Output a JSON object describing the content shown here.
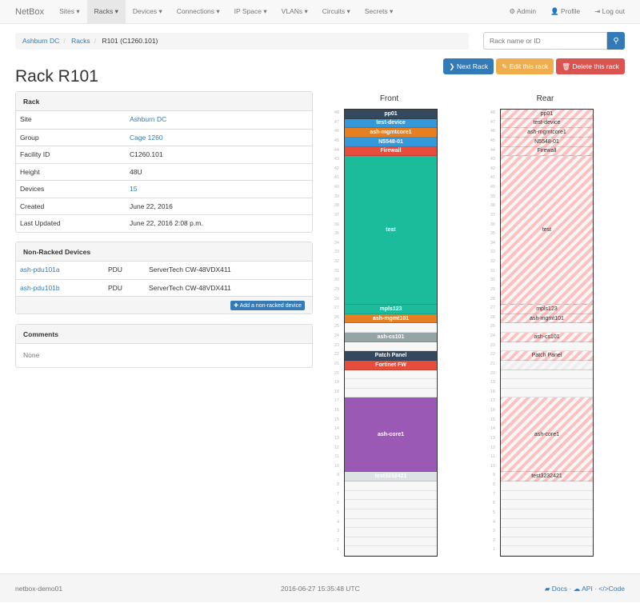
{
  "nav": {
    "brand": "NetBox",
    "items": [
      "Sites",
      "Racks",
      "Devices",
      "Connections",
      "IP Space",
      "VLANs",
      "Circuits",
      "Secrets"
    ],
    "active": "Racks",
    "right": [
      {
        "icon": "gear-icon",
        "label": "Admin"
      },
      {
        "icon": "user-icon",
        "label": "Profile"
      },
      {
        "icon": "log-out-icon",
        "label": "Log out"
      }
    ]
  },
  "breadcrumb": [
    "Ashburn DC",
    "Racks",
    "R101 (C1260.101)"
  ],
  "search": {
    "placeholder": "Rack name or ID"
  },
  "buttons": {
    "next": "Next Rack",
    "edit": "Edit this rack",
    "delete": "Delete this rack"
  },
  "title": "Rack R101",
  "rack_panel": {
    "heading": "Rack",
    "rows": [
      {
        "k": "Site",
        "v": "Ashburn DC",
        "link": true
      },
      {
        "k": "Group",
        "v": "Cage 1260",
        "link": true
      },
      {
        "k": "Facility ID",
        "v": "C1260.101"
      },
      {
        "k": "Height",
        "v": "48U"
      },
      {
        "k": "Devices",
        "v": "15",
        "link": true
      },
      {
        "k": "Created",
        "v": "June 22, 2016"
      },
      {
        "k": "Last Updated",
        "v": "June 22, 2016 2:08 p.m."
      }
    ]
  },
  "nonracked": {
    "heading": "Non-Racked Devices",
    "rows": [
      [
        "ash-pdu101a",
        "PDU",
        "ServerTech CW-48VDX411"
      ],
      [
        "ash-pdu101b",
        "PDU",
        "ServerTech CW-48VDX411"
      ]
    ],
    "add_label": "Add a non-racked device"
  },
  "comments": {
    "heading": "Comments",
    "body": "None"
  },
  "rack": {
    "height": 48,
    "front_label": "Front",
    "rear_label": "Rear",
    "devices": [
      {
        "name": "pp01",
        "u": 48,
        "h": 1,
        "color": "#34495e"
      },
      {
        "name": "test-device",
        "u": 47,
        "h": 1,
        "color": "#3498db"
      },
      {
        "name": "ash-mgmtcore1",
        "u": 46,
        "h": 1,
        "color": "#e67e22"
      },
      {
        "name": "N5548-01",
        "u": 45,
        "h": 1,
        "color": "#3498db"
      },
      {
        "name": "Firewall",
        "u": 44,
        "h": 1,
        "color": "#e74c3c"
      },
      {
        "name": "test",
        "u": 28,
        "h": 16,
        "color": "#1abc9c"
      },
      {
        "name": "mpls123",
        "u": 27,
        "h": 1,
        "color": "#1abc9c"
      },
      {
        "name": "ash-mgmt101",
        "u": 26,
        "h": 1,
        "color": "#e67e22"
      },
      {
        "name": "ash-cs101",
        "u": 24,
        "h": 1,
        "color": "#95a5a6"
      },
      {
        "name": "Patch Panel",
        "u": 22,
        "h": 1,
        "color": "#34495e"
      },
      {
        "name": "Fortinet FW",
        "u": 21,
        "h": 1,
        "color": "#e74c3c",
        "front_only": true
      },
      {
        "name": "ash-core1",
        "u": 10,
        "h": 8,
        "color": "#9b59b6"
      },
      {
        "name": "test3232421",
        "u": 9,
        "h": 1,
        "color": "#dde2e4"
      }
    ]
  },
  "footer": {
    "host": "netbox-demo01",
    "time": "2016-06-27 15:35:48 UTC",
    "links": [
      "Docs",
      "API",
      "Code"
    ]
  }
}
